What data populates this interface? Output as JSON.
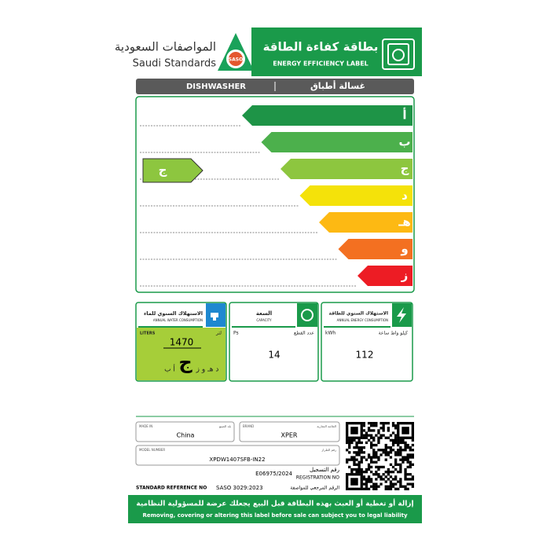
{
  "header": {
    "arabic_org": "المواصفات السعودية",
    "english_org": "Saudi Standards",
    "logo_text": "SASO",
    "title_ar": "بطاقة كفاءة الطاقة",
    "title_en": "ENERGY EFFICIENCY LABEL"
  },
  "product": {
    "en": "DISHWASHER",
    "ar": "غسالة أطباق"
  },
  "rating": {
    "classes": [
      "أ",
      "ب",
      "ج",
      "د",
      "هـ",
      "و",
      "ز"
    ],
    "selected": "ج"
  },
  "water": {
    "title_ar": "الاستهلاك السنوي للماء",
    "title_en": "ANNUAL WATER CONSUMPTION",
    "unit_en": "LITERS",
    "unit_ar": "لتر",
    "value": 1470,
    "scale_before": "أ ب",
    "class": "ج",
    "scale_after": "د هـ و ز"
  },
  "capacity": {
    "title_ar": "السعة",
    "title_en": "CAPACITY",
    "unit_en": "Ps",
    "unit_ar": "عدد القطع",
    "value": 14
  },
  "energy": {
    "title_ar": "الاستهلاك السنوي للطاقة",
    "title_en": "ANNUAL ENERGY CONSUMPTION",
    "unit_en": "kWh",
    "unit_ar": "كيلو واط ساعة",
    "value": 112
  },
  "info": {
    "made_in_en": "MADE IN",
    "made_in_ar": "بلد الصنع",
    "made_in": "China",
    "brand_en": "BRAND",
    "brand_ar": "العلامة التجارية",
    "brand": "XPER",
    "model_en": "MODEL NUMBER",
    "model_ar": "رقم الطراز",
    "model": "XPDW1407SFB-IN22",
    "registration_ar": "رقم التسجيل",
    "registration": "E06975/2024",
    "registration_en": "REGISTRATION NO",
    "standard_en": "STANDARD REFERENCE NO",
    "standard": "SASO 3029:2023",
    "standard_ar": "الرقم المرجعي للمواصفة"
  },
  "footer": {
    "ar": "إزالة أو تغطية أو العبث بهذه البطاقة قبل البيع يجعلك عرضة للمسؤولية النظامية",
    "en": "Removing, covering or altering this label before sale can subject you to legal liability"
  }
}
